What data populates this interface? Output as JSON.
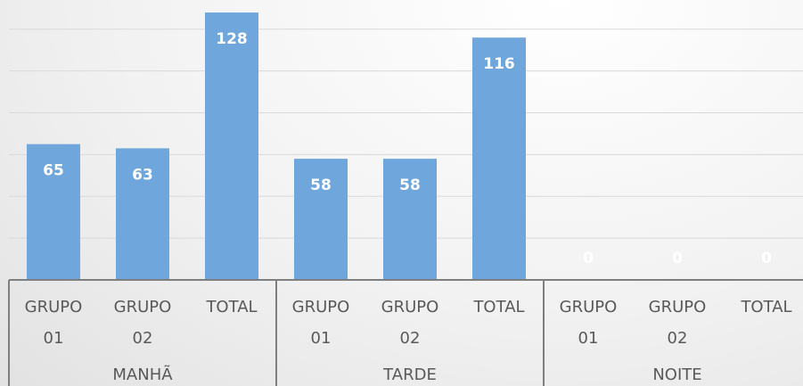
{
  "chart_data": {
    "type": "bar",
    "color": "#6fa6dc",
    "label_color": "#ffffff",
    "groups": [
      {
        "name": "MANHÃ",
        "categories": [
          "GRUPO 01",
          "GRUPO 02",
          "TOTAL"
        ],
        "values": [
          65,
          63,
          128
        ]
      },
      {
        "name": "TARDE",
        "categories": [
          "GRUPO 01",
          "GRUPO 02",
          "TOTAL"
        ],
        "values": [
          58,
          58,
          116
        ]
      },
      {
        "name": "NOITE",
        "categories": [
          "GRUPO 01",
          "GRUPO 02",
          "TOTAL"
        ],
        "values": [
          0,
          0,
          0
        ]
      }
    ],
    "ylim": [
      0,
      134
    ],
    "yticks": [
      0,
      20,
      40,
      60,
      80,
      100,
      120
    ],
    "grid": true
  }
}
